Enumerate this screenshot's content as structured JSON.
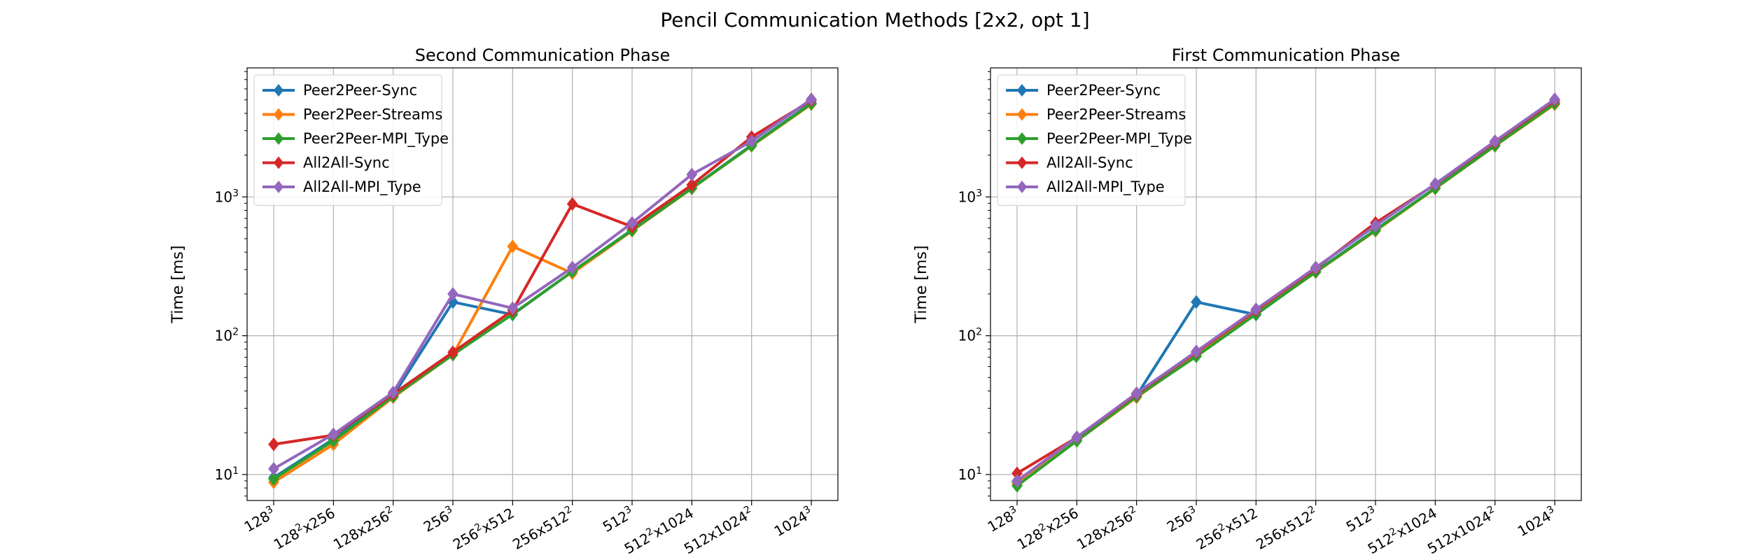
{
  "figure": {
    "title": "Pencil Communication Methods [2x2, opt 1]"
  },
  "colors": {
    "Peer2Peer-Sync": "#1f77b4",
    "Peer2Peer-Streams": "#ff7f0e",
    "Peer2Peer-MPI_Type": "#2ca02c",
    "All2All-Sync": "#d62728",
    "All2All-MPI_Type": "#9467bd"
  },
  "chart_data": [
    {
      "type": "line",
      "title": "Second Communication Phase",
      "xlabel": "",
      "ylabel": "Time [ms]",
      "yscale": "log",
      "ylim": [
        6.5,
        8500
      ],
      "yticks": [
        "10^1",
        "10^2",
        "10^3"
      ],
      "grid": true,
      "legend": "top-left",
      "categories": [
        "128^3",
        "128^2x256",
        "128x256^2",
        "256^3",
        "256^2x512",
        "256x512^2",
        "512^3",
        "512^2x1024",
        "512x1024^2",
        "1024^3"
      ],
      "series": [
        {
          "name": "Peer2Peer-Sync",
          "values": [
            9.5,
            18,
            37,
            175,
            142,
            290,
            580,
            1160,
            2360,
            4750
          ]
        },
        {
          "name": "Peer2Peer-Streams",
          "values": [
            8.8,
            16.5,
            36,
            73,
            440,
            282,
            570,
            1150,
            2330,
            4650
          ]
        },
        {
          "name": "Peer2Peer-MPI_Type",
          "values": [
            9.3,
            17.5,
            36.5,
            73,
            143,
            290,
            575,
            1155,
            2340,
            4700
          ]
        },
        {
          "name": "All2All-Sync",
          "values": [
            16.5,
            19.2,
            38,
            76,
            152,
            890,
            610,
            1220,
            2700,
            4950
          ]
        },
        {
          "name": "All2All-MPI_Type",
          "values": [
            11,
            19.5,
            39,
            200,
            158,
            310,
            650,
            1450,
            2520,
            5050
          ]
        }
      ]
    },
    {
      "type": "line",
      "title": "First Communication Phase",
      "xlabel": "",
      "ylabel": "Time [ms]",
      "yscale": "log",
      "ylim": [
        6.5,
        8500
      ],
      "yticks": [
        "10^1",
        "10^2",
        "10^3"
      ],
      "grid": true,
      "legend": "top-left",
      "categories": [
        "128^3",
        "128^2x256",
        "128x256^2",
        "256^3",
        "256^2x512",
        "256x512^2",
        "512^3",
        "512^2x1024",
        "512x1024^2",
        "1024^3"
      ],
      "series": [
        {
          "name": "Peer2Peer-Sync",
          "values": [
            8.8,
            18,
            37,
            175,
            142,
            290,
            580,
            1160,
            2360,
            4750
          ]
        },
        {
          "name": "Peer2Peer-Streams",
          "values": [
            8.6,
            17.5,
            36,
            72,
            144,
            287,
            570,
            1150,
            2330,
            4650
          ]
        },
        {
          "name": "Peer2Peer-MPI_Type",
          "values": [
            8.3,
            17.5,
            36.5,
            71,
            143,
            288,
            575,
            1155,
            2340,
            4700
          ]
        },
        {
          "name": "All2All-Sync",
          "values": [
            10.2,
            18.5,
            38,
            76,
            152,
            305,
            650,
            1230,
            2480,
            4950
          ]
        },
        {
          "name": "All2All-MPI_Type",
          "values": [
            9,
            18.6,
            38.5,
            77,
            155,
            310,
            620,
            1240,
            2520,
            5050
          ]
        }
      ]
    }
  ]
}
